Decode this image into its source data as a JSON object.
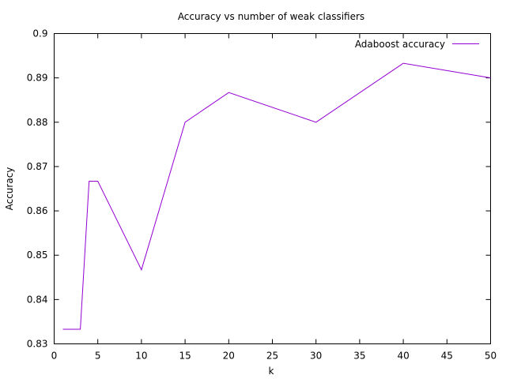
{
  "chart_data": {
    "type": "line",
    "title": "Accuracy vs number of weak classifiers",
    "xlabel": "k",
    "ylabel": "Accuracy",
    "xlim": [
      0,
      50
    ],
    "ylim": [
      0.83,
      0.9
    ],
    "x_ticks": [
      "0",
      "5",
      "10",
      "15",
      "20",
      "25",
      "30",
      "35",
      "40",
      "45",
      "50"
    ],
    "y_ticks": [
      "0.83",
      "0.84",
      "0.85",
      "0.86",
      "0.87",
      "0.88",
      "0.89",
      "0.9"
    ],
    "grid": false,
    "legend_position": "top-right",
    "series": [
      {
        "name": "Adaboost accuracy",
        "color": "#9400d3",
        "x": [
          1,
          2,
          3,
          4,
          5,
          10,
          15,
          20,
          30,
          40,
          50
        ],
        "values": [
          0.8333,
          0.8333,
          0.8333,
          0.8667,
          0.8667,
          0.8467,
          0.88,
          0.8867,
          0.88,
          0.8933,
          0.89
        ]
      }
    ]
  }
}
